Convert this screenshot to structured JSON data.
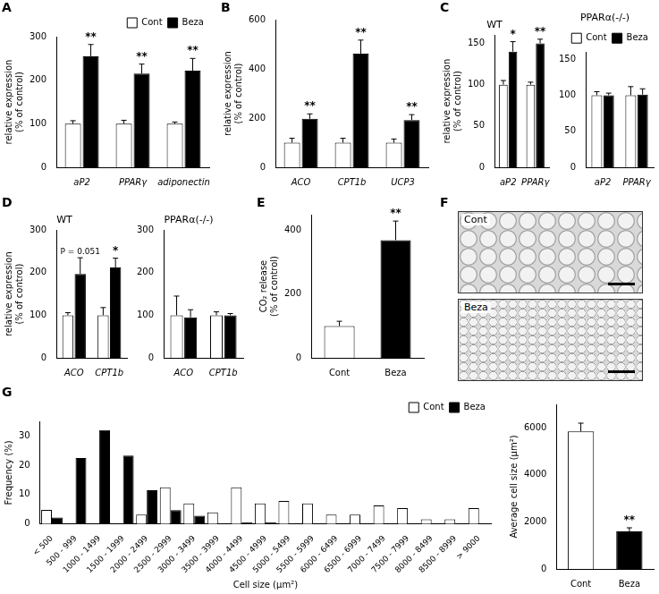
{
  "chart_data": [
    {
      "type": "bar",
      "label": "A",
      "categories": [
        "aP2",
        "PPARγ",
        "adiponectin"
      ],
      "series": [
        {
          "name": "Cont",
          "color": "#ffffff",
          "values": [
            100,
            100,
            100
          ],
          "errors": [
            7,
            8,
            4
          ]
        },
        {
          "name": "Beza",
          "color": "#000000",
          "values": [
            255,
            215,
            222
          ],
          "errors": [
            27,
            22,
            28
          ]
        }
      ],
      "ylabel": [
        "relative expression",
        "(% of control)"
      ],
      "ylim": [
        0,
        300
      ],
      "yticks": [
        0,
        100,
        200,
        300
      ],
      "grid": false,
      "legend": "top-right",
      "annotations": [
        {
          "text": "**",
          "series": 1,
          "index": 0
        },
        {
          "text": "**",
          "series": 1,
          "index": 1
        },
        {
          "text": "**",
          "series": 1,
          "index": 2
        }
      ]
    },
    {
      "type": "bar",
      "label": "B",
      "categories": [
        "ACO",
        "CPT1b",
        "UCP3"
      ],
      "series": [
        {
          "name": "Cont",
          "color": "#ffffff",
          "values": [
            100,
            100,
            100
          ],
          "errors": [
            18,
            18,
            15
          ]
        },
        {
          "name": "Beza",
          "color": "#000000",
          "values": [
            197,
            462,
            192
          ],
          "errors": [
            20,
            55,
            22
          ]
        }
      ],
      "ylabel": [
        "relative expression",
        "(% of control)"
      ],
      "ylim": [
        0,
        600
      ],
      "yticks": [
        0,
        200,
        400,
        600
      ],
      "grid": false,
      "annotations": [
        {
          "text": "**",
          "series": 1,
          "index": 0
        },
        {
          "text": "**",
          "series": 1,
          "index": 1
        },
        {
          "text": "**",
          "series": 1,
          "index": 2
        }
      ]
    },
    {
      "type": "bar",
      "label": "C",
      "title": "WT",
      "categories": [
        "aP2",
        "PPARγ"
      ],
      "series": [
        {
          "name": "Cont",
          "color": "#ffffff",
          "values": [
            100,
            100
          ],
          "errors": [
            5,
            3
          ]
        },
        {
          "name": "Beza",
          "color": "#000000",
          "values": [
            140,
            150
          ],
          "errors": [
            12,
            5
          ]
        }
      ],
      "ylabel": [
        "relative expression",
        "(% of control)"
      ],
      "ylim": [
        0,
        160
      ],
      "yticks": [
        0,
        50,
        100,
        150
      ],
      "grid": false,
      "annotations": [
        {
          "text": "*",
          "series": 1,
          "index": 0
        },
        {
          "text": "**",
          "series": 1,
          "index": 1
        }
      ]
    },
    {
      "type": "bar",
      "title": "PPARα(-/-)",
      "categories": [
        "aP2",
        "PPARγ"
      ],
      "series": [
        {
          "name": "Cont",
          "color": "#ffffff",
          "values": [
            100,
            100
          ],
          "errors": [
            5,
            12
          ]
        },
        {
          "name": "Beza",
          "color": "#000000",
          "values": [
            100,
            101
          ],
          "errors": [
            3,
            8
          ]
        }
      ],
      "ylim": [
        0,
        160
      ],
      "yticks": [
        0,
        50,
        100,
        150
      ],
      "grid": false,
      "legend": "top-right"
    },
    {
      "type": "bar",
      "label": "D",
      "title": "WT",
      "categories": [
        "ACO",
        "CPT1b"
      ],
      "series": [
        {
          "name": "Cont",
          "color": "#ffffff",
          "values": [
            100,
            100
          ],
          "errors": [
            6,
            18
          ]
        },
        {
          "name": "Beza",
          "color": "#000000",
          "values": [
            197,
            212
          ],
          "errors": [
            38,
            22
          ]
        }
      ],
      "ylabel": [
        "relative expression",
        "(% of control)"
      ],
      "ylim": [
        0,
        300
      ],
      "yticks": [
        0,
        100,
        200,
        300
      ],
      "grid": false,
      "annotations": [
        {
          "text": "P = 0.051",
          "series": 1,
          "index": 0
        },
        {
          "text": "*",
          "series": 1,
          "index": 1
        }
      ]
    },
    {
      "type": "bar",
      "title": "PPARα(-/-)",
      "categories": [
        "ACO",
        "CPT1b"
      ],
      "series": [
        {
          "name": "Cont",
          "color": "#ffffff",
          "values": [
            100,
            100
          ],
          "errors": [
            45,
            8
          ]
        },
        {
          "name": "Beza",
          "color": "#000000",
          "values": [
            95,
            100
          ],
          "errors": [
            18,
            4
          ]
        }
      ],
      "ylim": [
        0,
        300
      ],
      "yticks": [
        0,
        100,
        200,
        300
      ],
      "grid": false
    },
    {
      "type": "bar",
      "label": "E",
      "categories": [
        "Cont",
        "Beza"
      ],
      "values": [
        100,
        370
      ],
      "errors": [
        15,
        60
      ],
      "colors": [
        "#ffffff",
        "#000000"
      ],
      "ylabel": [
        "CO₂ release",
        "(% of control)"
      ],
      "ylim": [
        0,
        450
      ],
      "yticks": [
        0,
        200,
        400
      ],
      "grid": false,
      "annotations": [
        {
          "text": "**",
          "series": 0,
          "index": 1
        }
      ]
    },
    {
      "type": "bar",
      "label": "G",
      "categories": [
        "< 500",
        "500 - 999",
        "1000 - 1499",
        "1500 - 1999",
        "2000 - 2499",
        "2500 - 2999",
        "3000 - 3499",
        "3500 - 3999",
        "4000 - 4499",
        "4500 - 4999",
        "5000 - 5499",
        "5500 - 5999",
        "6000 - 6499",
        "6500 - 6999",
        "7000 - 7499",
        "7500 - 7999",
        "8000 - 8499",
        "8500 - 8999",
        "> 9000"
      ],
      "series": [
        {
          "name": "Cont",
          "color": "#ffffff",
          "values": [
            4.8,
            0,
            0,
            0,
            3.2,
            12.5,
            7,
            3.9,
            12.5,
            7,
            7.8,
            7,
            3.2,
            3.2,
            6.3,
            5.4,
            1.6,
            1.6,
            5.4
          ]
        },
        {
          "name": "Beza",
          "color": "#000000",
          "values": [
            2.2,
            22.5,
            32,
            23.3,
            11.5,
            4.7,
            2.8,
            0,
            0.5,
            0.5,
            0,
            0,
            0,
            0,
            0,
            0,
            0,
            0,
            0
          ]
        }
      ],
      "xlabel": "Cell size (µm²)",
      "ylabel": "Frequency (%)",
      "ylim": [
        0,
        35
      ],
      "yticks": [
        0,
        10,
        20,
        30
      ],
      "grid": false,
      "legend": "top-right"
    },
    {
      "type": "bar",
      "categories": [
        "Cont",
        "Beza"
      ],
      "values": [
        5850,
        1600
      ],
      "errors": [
        350,
        150
      ],
      "colors": [
        "#ffffff",
        "#000000"
      ],
      "ylabel": "Average cell size (µm²)",
      "ylim": [
        0,
        7000
      ],
      "yticks": [
        0,
        2000,
        4000,
        6000
      ],
      "grid": false,
      "annotations": [
        {
          "text": "**",
          "series": 0,
          "index": 1
        }
      ]
    }
  ],
  "micrograph": {
    "label": "F",
    "panels": [
      "Cont",
      "Beza"
    ]
  }
}
